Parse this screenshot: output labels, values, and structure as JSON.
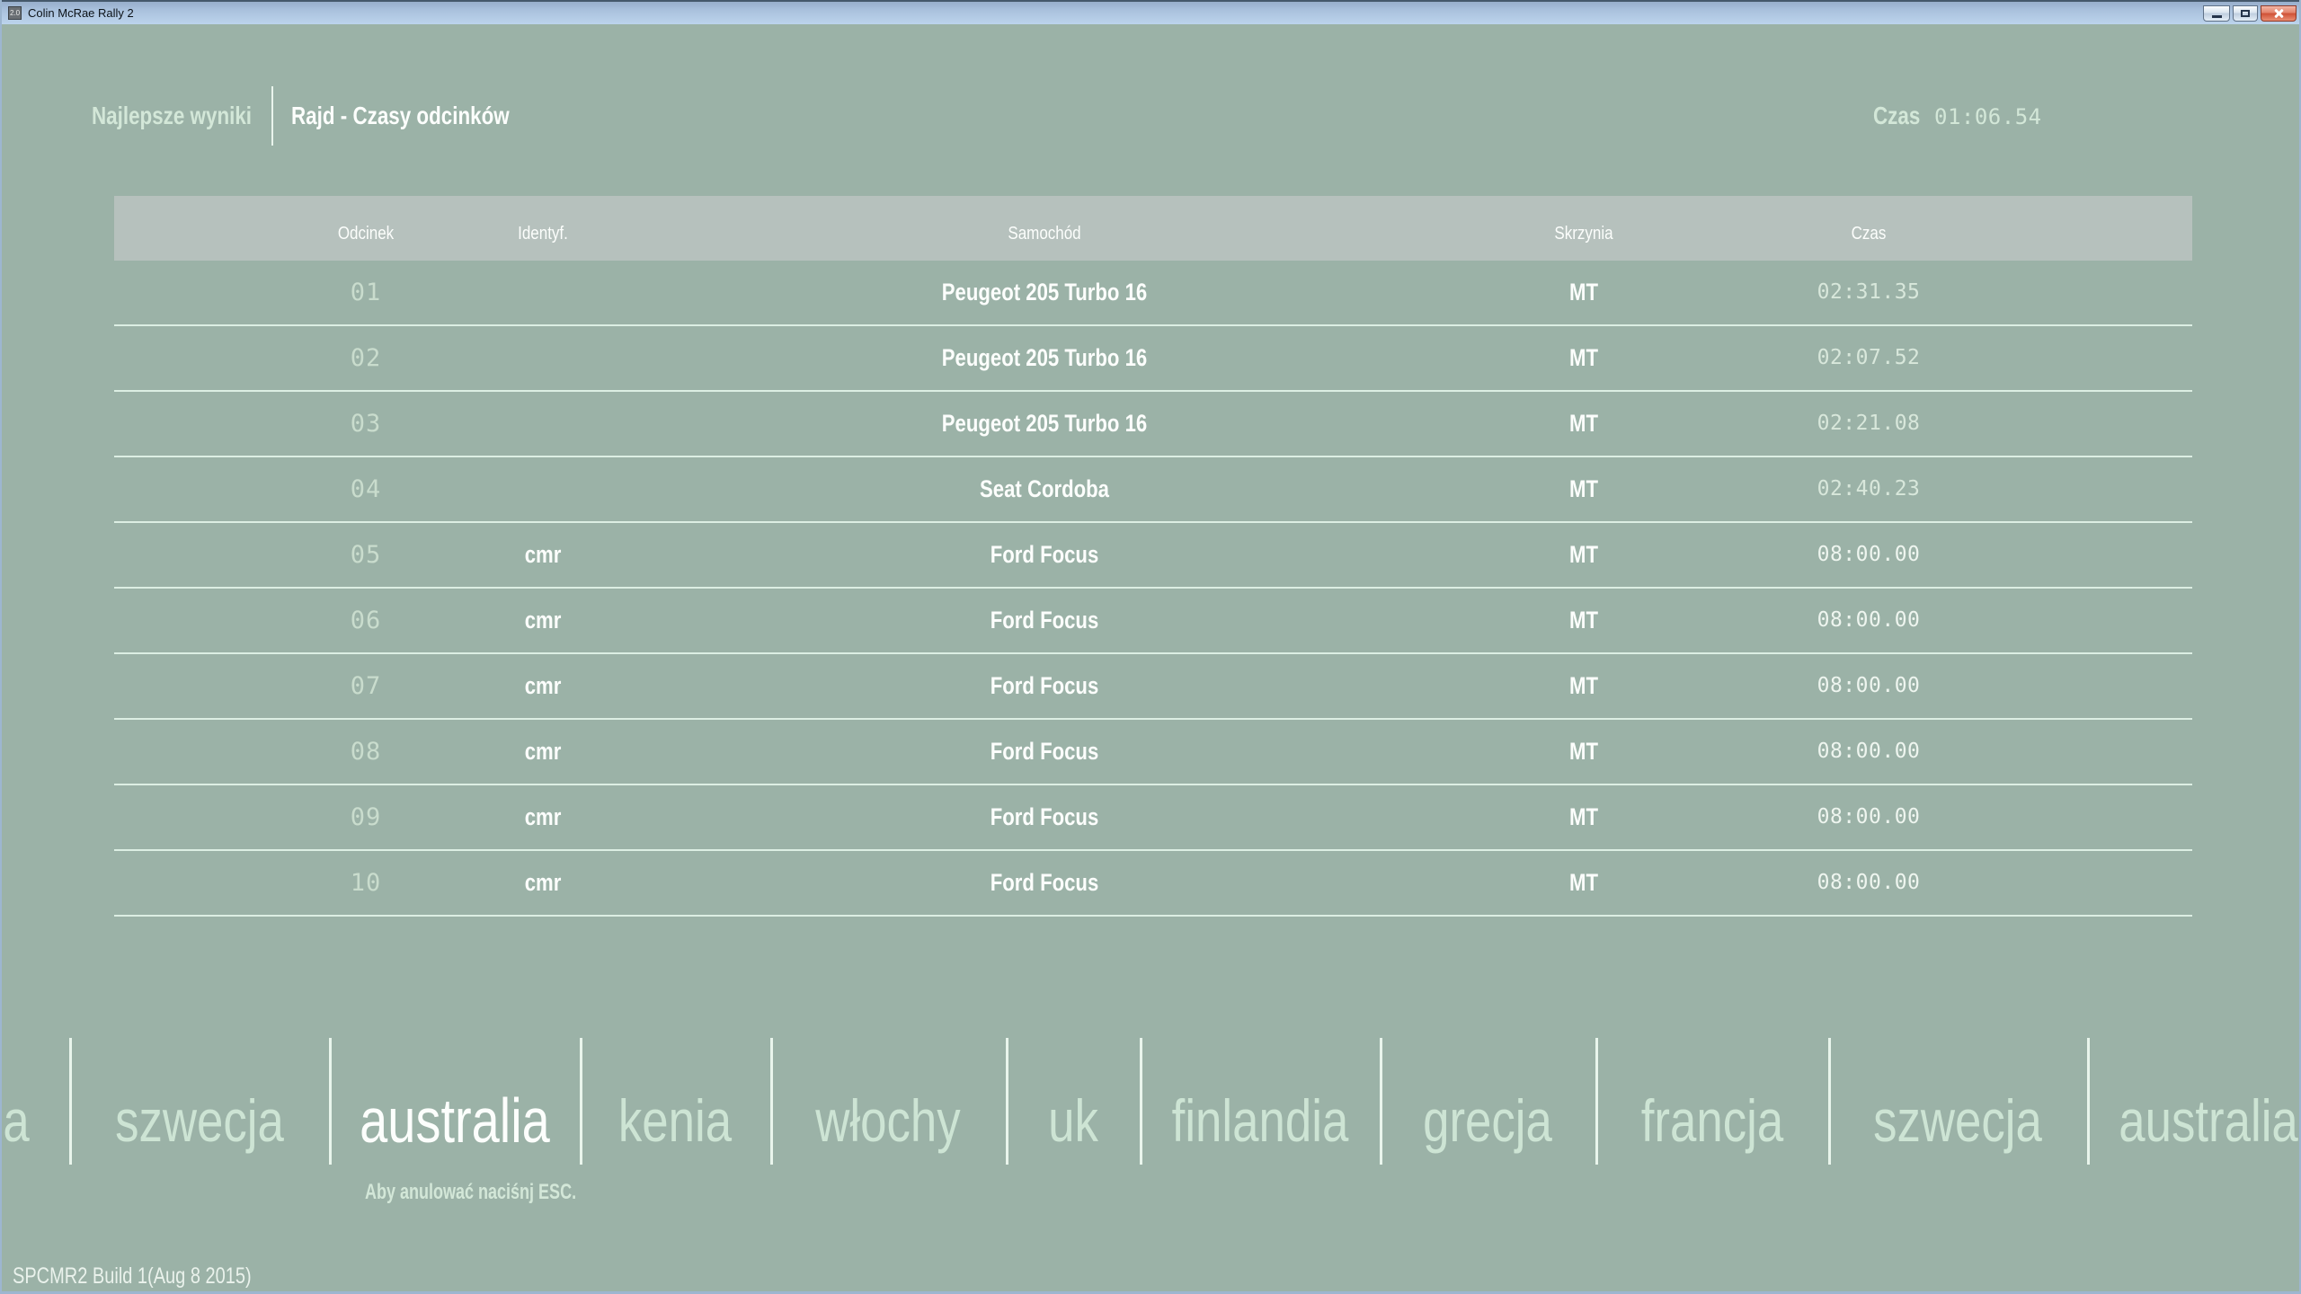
{
  "window": {
    "title": "Colin McRae Rally 2",
    "icon_text": "2.0"
  },
  "topbar": {
    "section_label": "Najlepsze wyniki",
    "page_title": "Rajd - Czasy odcinków",
    "clock_label": "Czas",
    "clock_value": "01:06.54"
  },
  "table": {
    "columns": [
      "Odcinek",
      "Identyf.",
      "Samochód",
      "Skrzynia",
      "Czas"
    ],
    "rows": [
      {
        "stage": "01",
        "ident": "",
        "car": "Peugeot 205 Turbo 16",
        "gearbox": "MT",
        "time": "02:31.35"
      },
      {
        "stage": "02",
        "ident": "",
        "car": "Peugeot 205 Turbo 16",
        "gearbox": "MT",
        "time": "02:07.52"
      },
      {
        "stage": "03",
        "ident": "",
        "car": "Peugeot 205 Turbo 16",
        "gearbox": "MT",
        "time": "02:21.08"
      },
      {
        "stage": "04",
        "ident": "",
        "car": "Seat Cordoba",
        "gearbox": "MT",
        "time": "02:40.23"
      },
      {
        "stage": "05",
        "ident": "cmr",
        "car": "Ford Focus",
        "gearbox": "MT",
        "time": "08:00.00"
      },
      {
        "stage": "06",
        "ident": "cmr",
        "car": "Ford Focus",
        "gearbox": "MT",
        "time": "08:00.00"
      },
      {
        "stage": "07",
        "ident": "cmr",
        "car": "Ford Focus",
        "gearbox": "MT",
        "time": "08:00.00"
      },
      {
        "stage": "08",
        "ident": "cmr",
        "car": "Ford Focus",
        "gearbox": "MT",
        "time": "08:00.00"
      },
      {
        "stage": "09",
        "ident": "cmr",
        "car": "Ford Focus",
        "gearbox": "MT",
        "time": "08:00.00"
      },
      {
        "stage": "10",
        "ident": "cmr",
        "car": "Ford Focus",
        "gearbox": "MT",
        "time": "08:00.00"
      }
    ]
  },
  "carousel": {
    "partial_left": "a",
    "items": [
      {
        "label": "szwecja",
        "selected": false
      },
      {
        "label": "australia",
        "selected": true
      },
      {
        "label": "kenia",
        "selected": false
      },
      {
        "label": "włochy",
        "selected": false
      },
      {
        "label": "uk",
        "selected": false
      },
      {
        "label": "finlandia",
        "selected": false
      },
      {
        "label": "grecja",
        "selected": false
      },
      {
        "label": "francja",
        "selected": false
      },
      {
        "label": "szwecja",
        "selected": false
      },
      {
        "label": "australia",
        "selected": false
      }
    ]
  },
  "footer": {
    "hint": "Aby anulować naciśnj ESC.",
    "version": "SPCMR2 Build 1(Aug 8 2015)"
  },
  "colors": {
    "bg": "#9bb2a7",
    "panel": "#b6c1bd",
    "pale": "#d3e7d8",
    "white": "#fcfefc",
    "separator": "#dceee3",
    "stage_num": "#c9dccd",
    "time_dim": "#d8e7db",
    "time_bright": "#eef5ef",
    "carousel_pale": "#cde4d4",
    "close_red": "#cf5136"
  }
}
